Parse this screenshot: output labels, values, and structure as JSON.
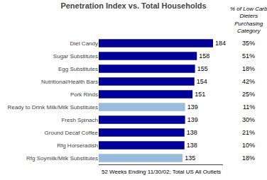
{
  "chart_data": {
    "type": "bar",
    "orientation": "horizontal",
    "title": "Penetration Index vs. Total Households",
    "categories": [
      "Diet Candy",
      "Sugar Substitutes",
      "Egg Substitutes",
      "Nutritional/Health Bars",
      "Pork Rinds",
      "Ready to Drink Milk/Milk Substitutes",
      "Fresh Spinach",
      "Ground Decaf Coffee",
      "Rfg Horseradish",
      "Rfg Soymilk/Milk Substitutes"
    ],
    "values": [
      184,
      158,
      155,
      154,
      151,
      139,
      139,
      138,
      138,
      135
    ],
    "colors": [
      "#000099",
      "#000099",
      "#000099",
      "#000099",
      "#000099",
      "#99BBDD",
      "#000099",
      "#000099",
      "#000099",
      "#99BBDD"
    ],
    "data_labels": true,
    "xlim": [
      0,
      200
    ],
    "tick_labels": "y",
    "grid": false,
    "side_column": {
      "title": "% of Low Carb\nDieters\nPurchasing\nCategory",
      "values": [
        35,
        51,
        18,
        42,
        25,
        11,
        30,
        21,
        10,
        18
      ],
      "value_labels": [
        "35%",
        "51%",
        "18%",
        "42%",
        "25%",
        "11%",
        "30%",
        "21%",
        "10%",
        "18%"
      ]
    },
    "footnote": "52 Weeks Ending 11/30/02; Total US All Outlets"
  }
}
